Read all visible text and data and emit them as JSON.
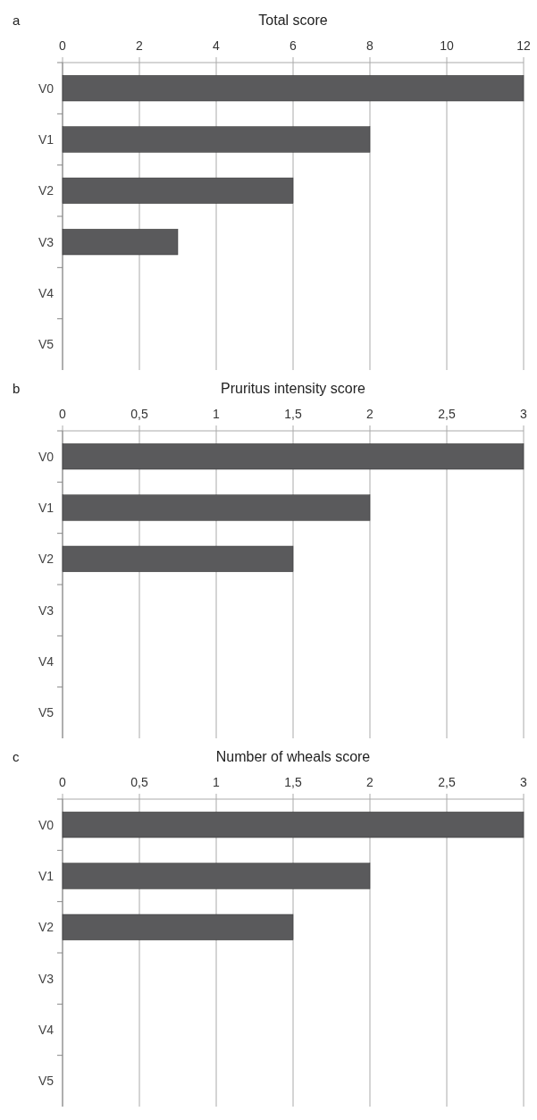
{
  "chart_data": [
    {
      "type": "bar",
      "orientation": "horizontal",
      "title": "Total score",
      "annotations": [
        "a"
      ],
      "categories": [
        "V0",
        "V1",
        "V2",
        "V3",
        "V4",
        "V5"
      ],
      "values": [
        12,
        8,
        6,
        3,
        0,
        0
      ],
      "color": "#5a5a5c",
      "xlim": [
        0,
        12
      ],
      "xticks": [
        0,
        2,
        4,
        6,
        8,
        10,
        12
      ],
      "grid": "x"
    },
    {
      "type": "bar",
      "orientation": "horizontal",
      "title": "Pruritus intensity score",
      "annotations": [
        "b"
      ],
      "categories": [
        "V0",
        "V1",
        "V2",
        "V3",
        "V4",
        "V5"
      ],
      "values": [
        3,
        2,
        1.5,
        0,
        0,
        0
      ],
      "color": "#5a5a5c",
      "xlim": [
        0,
        3
      ],
      "xticks": [
        0,
        {
          "value": 0.5,
          "label": "0,5"
        },
        1,
        {
          "value": 1.5,
          "label": "1,5"
        },
        2,
        {
          "value": 2.5,
          "label": "2,5"
        },
        3
      ],
      "grid": "x"
    },
    {
      "type": "bar",
      "orientation": "horizontal",
      "title": "Number of wheals score",
      "annotations": [
        "c"
      ],
      "categories": [
        "V0",
        "V1",
        "V2",
        "V3",
        "V4",
        "V5"
      ],
      "values": [
        3,
        2,
        1.5,
        0,
        0,
        0
      ],
      "color": "#5a5a5c",
      "xlim": [
        0,
        3
      ],
      "xticks": [
        0,
        {
          "value": 0.5,
          "label": "0,5"
        },
        1,
        {
          "value": 1.5,
          "label": "1,5"
        },
        2,
        {
          "value": 2.5,
          "label": "2,5"
        },
        3
      ],
      "grid": "x"
    }
  ]
}
